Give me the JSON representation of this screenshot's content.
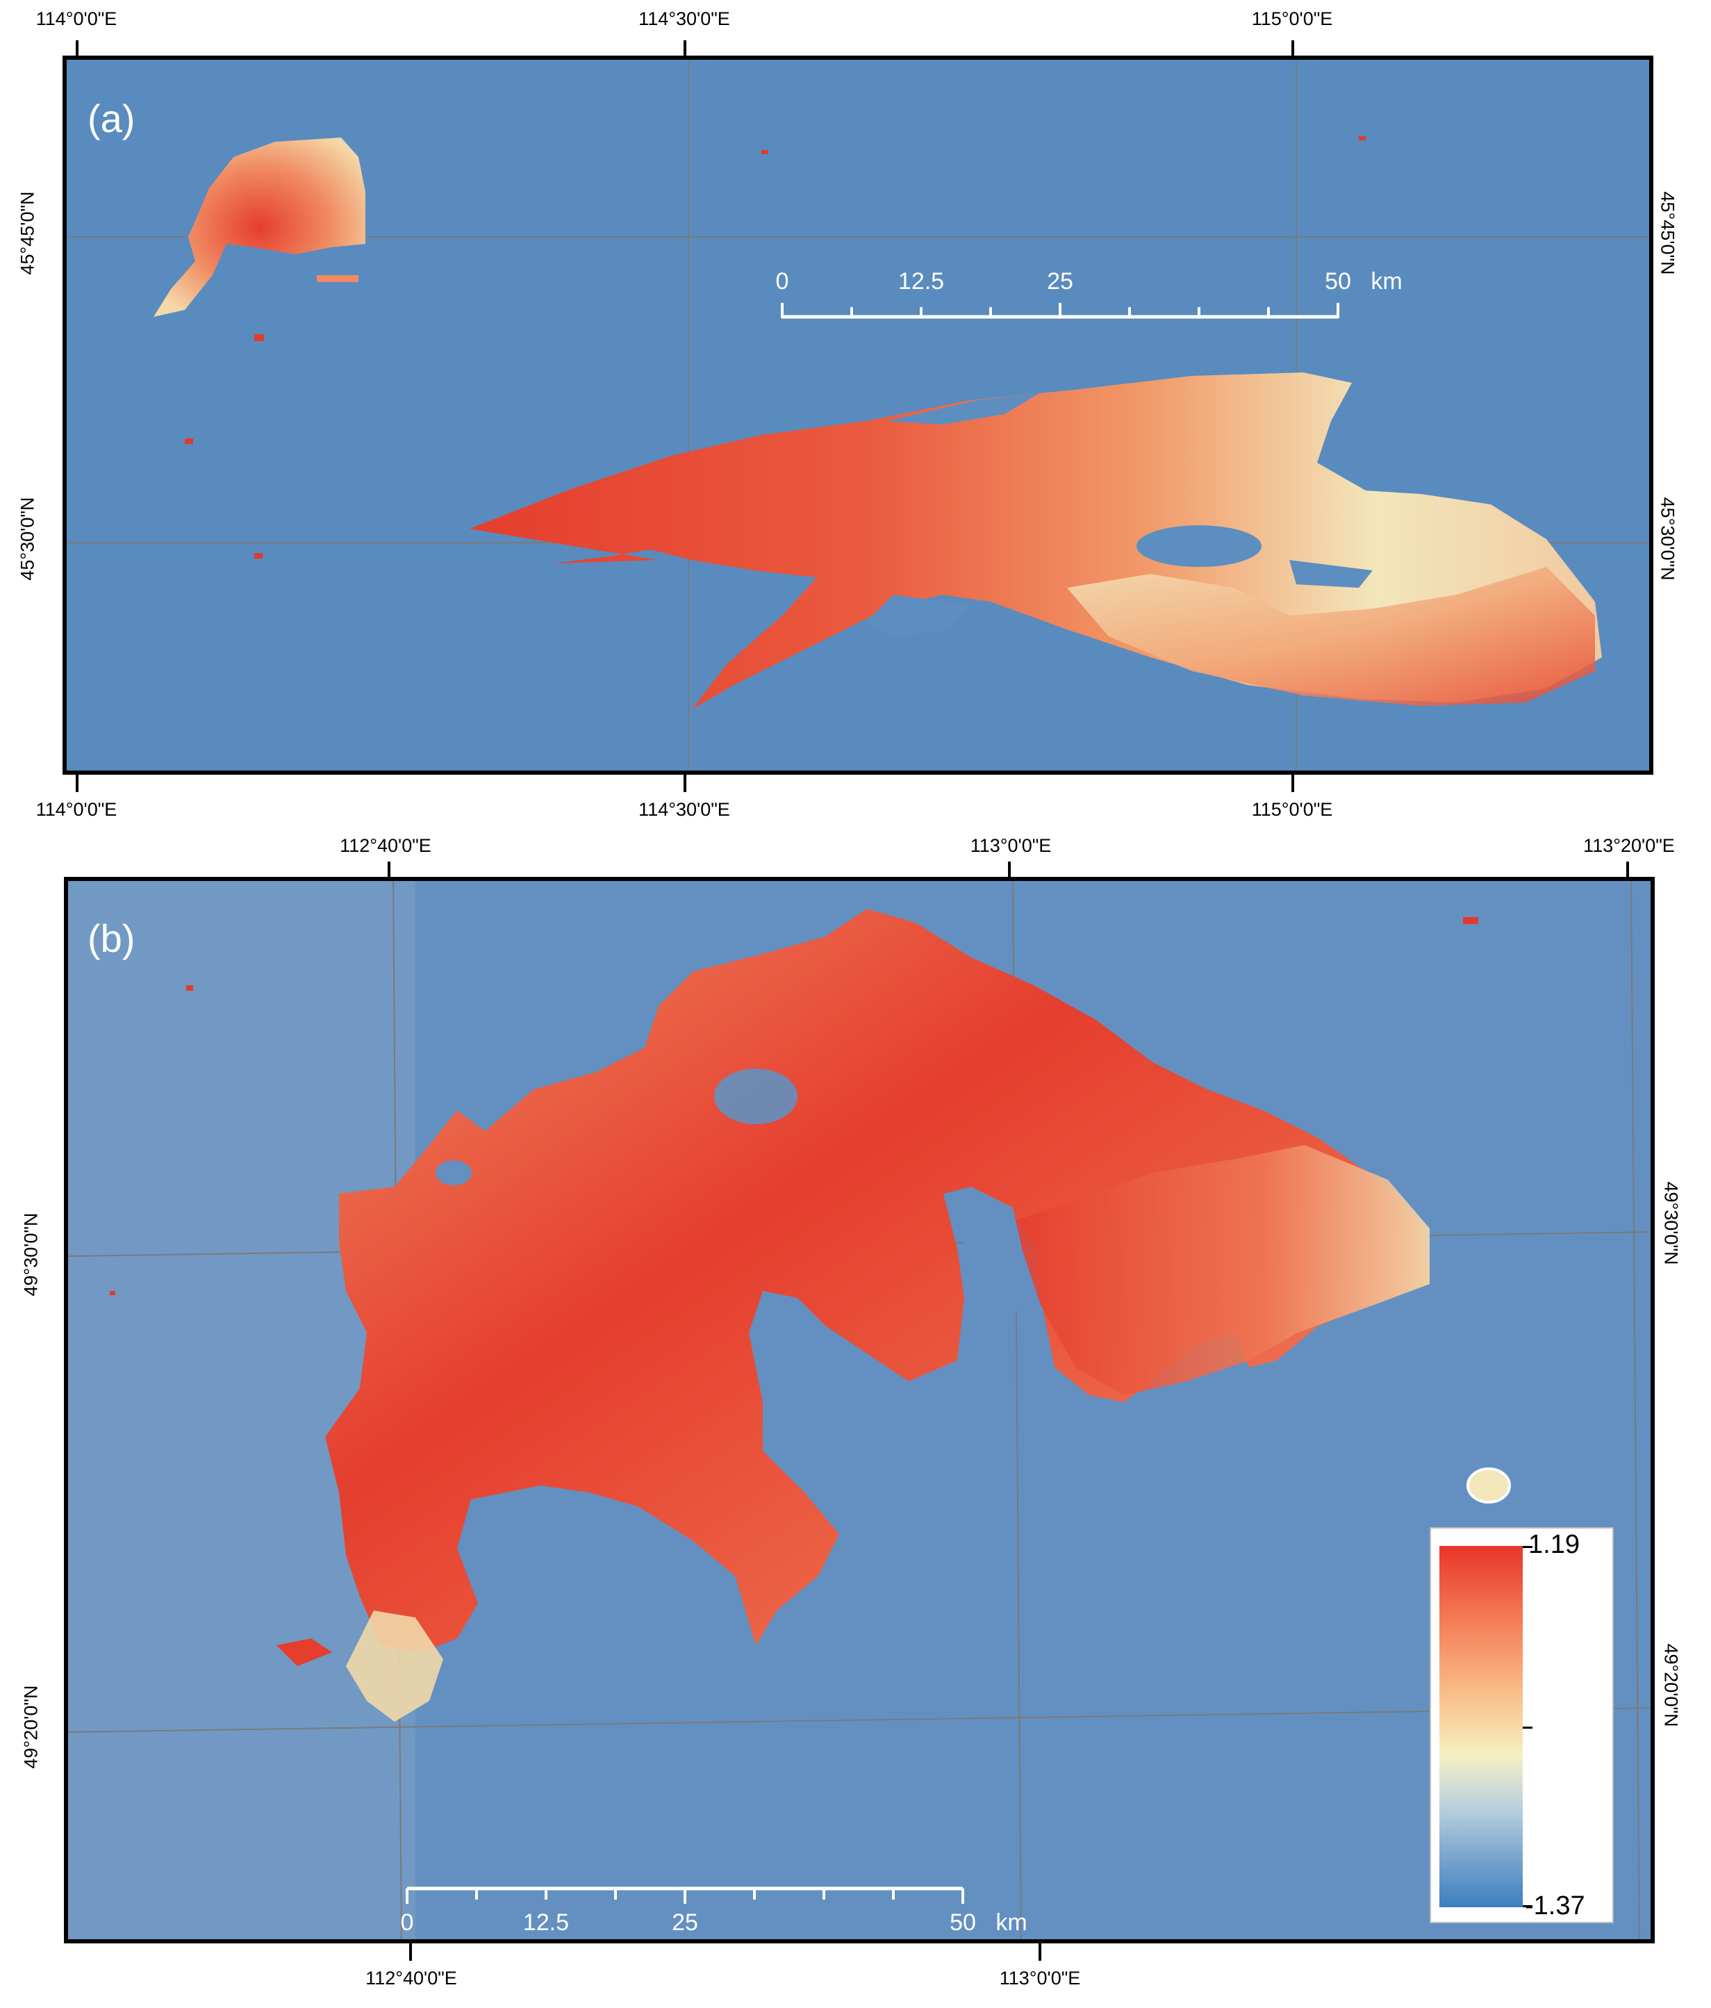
{
  "panel_a": {
    "letter": "(a)",
    "top_labels": [
      "114°0'0\"E",
      "114°30'0\"E",
      "115°0'0\"E"
    ],
    "bottom_labels": [
      "114°0'0\"E",
      "114°30'0\"E",
      "115°0'0\"E"
    ],
    "left_labels": [
      "45°45'0\"N",
      "45°30'0\"N"
    ],
    "right_labels": [
      "45°45'0\"N",
      "45°30'0\"N"
    ],
    "scale_labels": [
      "0",
      "12.5",
      "25",
      "50",
      "km"
    ]
  },
  "panel_b": {
    "letter": "(b)",
    "top_labels": [
      "112°40'0\"E",
      "113°0'0\"E",
      "113°20'0\"E"
    ],
    "bottom_labels": [
      "112°40'0\"E",
      "113°0'0\"E"
    ],
    "left_labels": [
      "49°30'0\"N",
      "49°20'0\"N"
    ],
    "right_labels": [
      "49°30'0\"N",
      "49°20'0\"N"
    ],
    "scale_labels": [
      "0",
      "12.5",
      "25",
      "50",
      "km"
    ]
  },
  "legend": {
    "max": "1.19",
    "min": "-1.37",
    "colors": [
      "#e8352a",
      "#f47a55",
      "#f9bb86",
      "#f4f1c2",
      "#bcd1df",
      "#7aa6cf",
      "#3e7fbf"
    ]
  },
  "colors": {
    "background": "#5d8ec0",
    "burn_high": "#e53e2e",
    "burn_mid": "#f08a62",
    "burn_low": "#f3e6bb"
  }
}
